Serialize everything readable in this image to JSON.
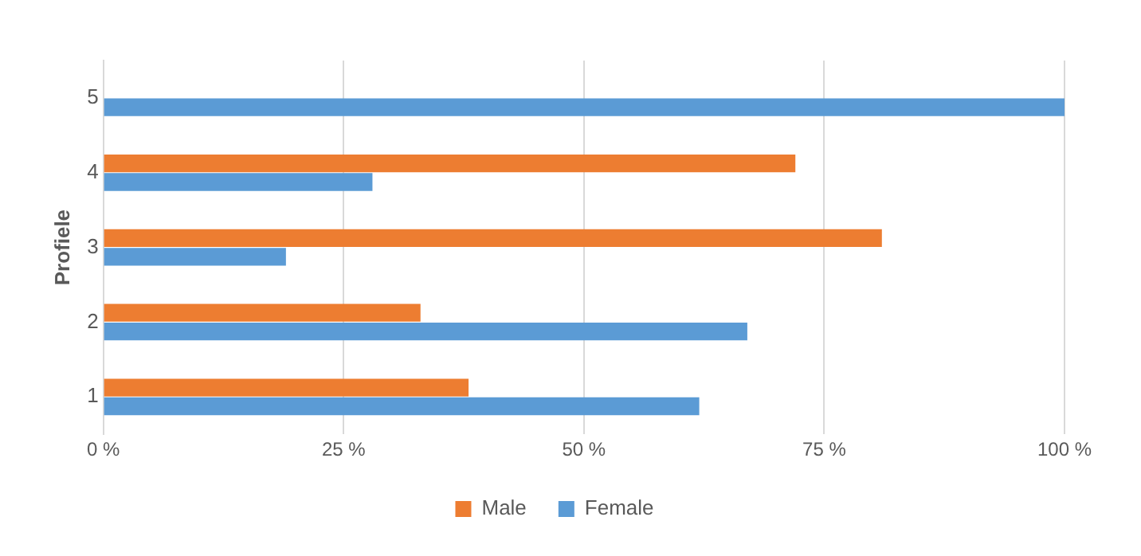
{
  "chart_data": {
    "type": "bar",
    "orientation": "horizontal",
    "ylabel": "Profiele",
    "categories": [
      "5",
      "4",
      "3",
      "2",
      "1"
    ],
    "series": [
      {
        "name": "Male",
        "color": "#ed7d31",
        "values": [
          0,
          72,
          81,
          33,
          38
        ]
      },
      {
        "name": "Female",
        "color": "#5b9bd5",
        "values": [
          100,
          28,
          19,
          67,
          62
        ]
      }
    ],
    "xlim": [
      0,
      100
    ],
    "xticks": [
      {
        "value": 0,
        "label": "0 %"
      },
      {
        "value": 25,
        "label": "25 %"
      },
      {
        "value": 50,
        "label": "50 %"
      },
      {
        "value": 75,
        "label": "75 %"
      },
      {
        "value": 100,
        "label": "100 %"
      }
    ],
    "grid": "x",
    "legend": "bottom"
  }
}
